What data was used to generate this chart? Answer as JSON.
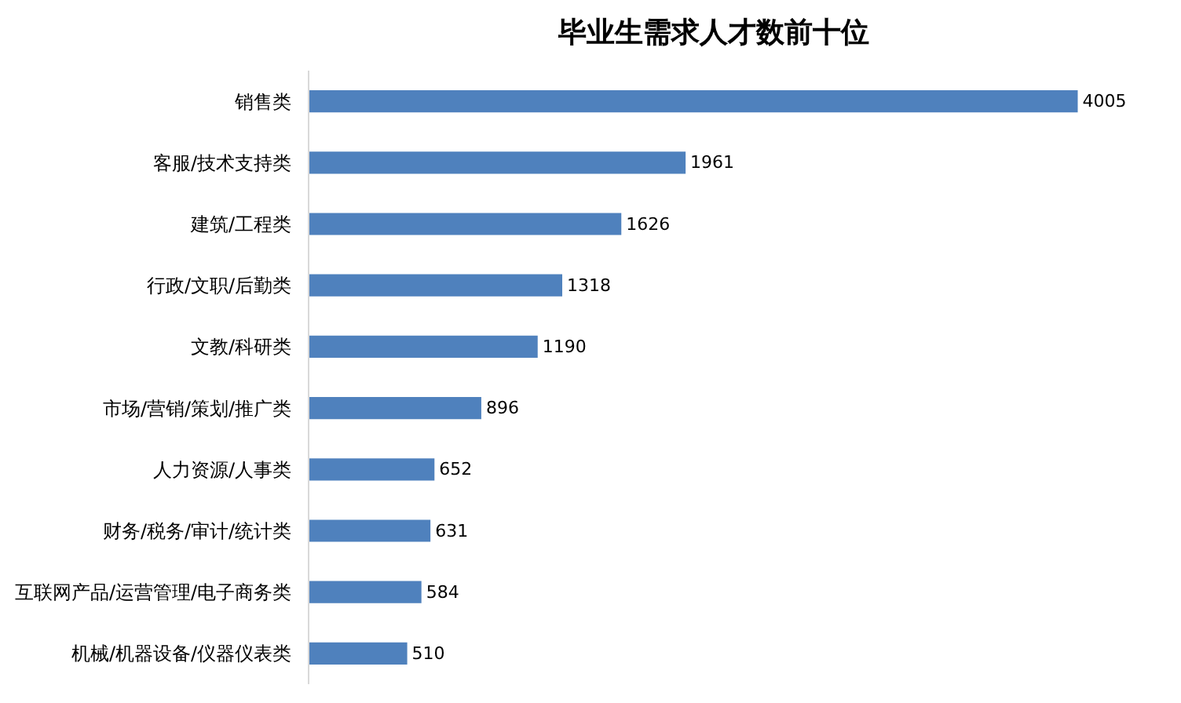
{
  "chart_data": {
    "type": "bar",
    "orientation": "horizontal",
    "title": "毕业生需求人才数前十位",
    "categories": [
      "销售类",
      "客服/技术支持类",
      "建筑/工程类",
      "行政/文职/后勤类",
      "文教/科研类",
      "市场/营销/策划/推广类",
      "人力资源/人事类",
      "财务/税务/审计/统计类",
      "互联网产品/运营管理/电子商务类",
      "机械/机器设备/仪器仪表类"
    ],
    "values": [
      4005,
      1961,
      1626,
      1318,
      1190,
      896,
      652,
      631,
      584,
      510
    ],
    "color": "#4f81bd",
    "data_labels": true
  }
}
